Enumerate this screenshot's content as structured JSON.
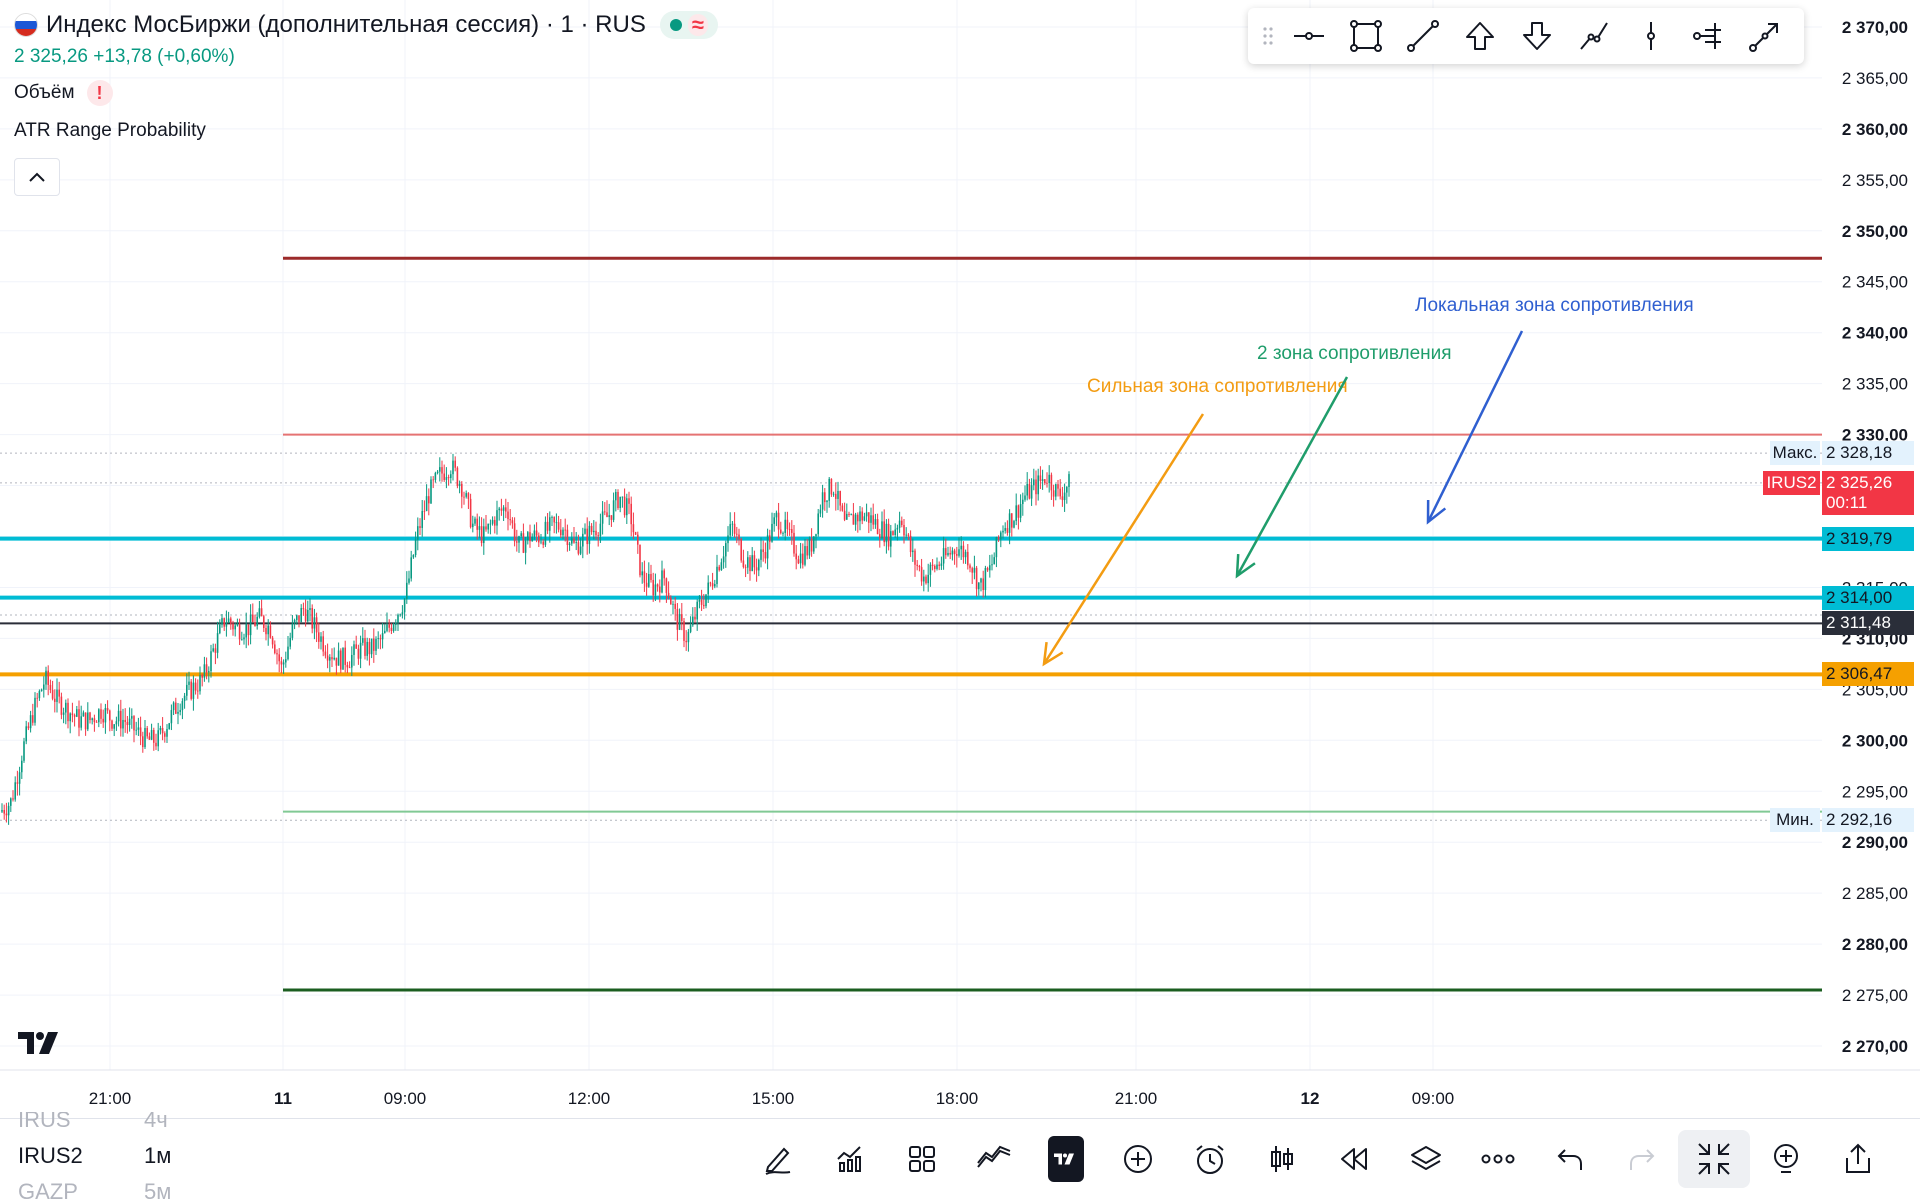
{
  "header": {
    "title": "Индекс МосБиржи (дополнительная сессия) · 1 · RUS",
    "price_line": "2 325,26 +13,78 (+0,60%)",
    "indicators": [
      "Объём",
      "ATR Range Probability"
    ]
  },
  "colors": {
    "up": "#089981",
    "down": "#f23645",
    "cyan": "#00bcd4",
    "orange": "#f5a000",
    "annot_orange": "#f39c12",
    "annot_green": "#1f9d6b",
    "annot_blue": "#2f5fd0"
  },
  "drawing_toolbar": [
    "grip-icon",
    "horizontal-ray-icon",
    "rectangle-icon",
    "trend-line-icon",
    "arrow-up-icon",
    "arrow-down-icon",
    "polyline-icon",
    "vertical-line-icon",
    "anchored-vwap-icon",
    "arrow-line-icon"
  ],
  "chart_data": {
    "type": "candlestick",
    "symbol": "IRUS2",
    "y_axis": {
      "range": [
        2267.5,
        2372.5
      ],
      "ticks": [
        "2 370,00",
        "2 365,00",
        "2 360,00",
        "2 355,00",
        "2 350,00",
        "2 345,00",
        "2 340,00",
        "2 335,00",
        "2 330,00",
        "2 325,00",
        "2 320,00",
        "2 315,00",
        "2 310,00",
        "2 305,00",
        "2 300,00",
        "2 295,00",
        "2 290,00",
        "2 285,00",
        "2 280,00",
        "2 275,00",
        "2 270,00"
      ],
      "tick_values": [
        2370,
        2365,
        2360,
        2355,
        2350,
        2345,
        2340,
        2335,
        2330,
        2325,
        2320,
        2315,
        2310,
        2305,
        2300,
        2295,
        2290,
        2285,
        2280,
        2275,
        2270
      ]
    },
    "x_axis": {
      "ticks": [
        {
          "label": "21:00",
          "bold": false
        },
        {
          "label": "11",
          "bold": true
        },
        {
          "label": "09:00",
          "bold": false
        },
        {
          "label": "12:00",
          "bold": false
        },
        {
          "label": "15:00",
          "bold": false
        },
        {
          "label": "18:00",
          "bold": false
        },
        {
          "label": "21:00",
          "bold": false
        },
        {
          "label": "12",
          "bold": true
        },
        {
          "label": "09:00",
          "bold": false
        }
      ]
    },
    "price_path": [
      [
        0,
        2293
      ],
      [
        1,
        2294
      ],
      [
        2,
        2299
      ],
      [
        3,
        2303
      ],
      [
        4,
        2306
      ],
      [
        5,
        2304
      ],
      [
        6,
        2303
      ],
      [
        7,
        2302
      ],
      [
        8,
        2302
      ],
      [
        9,
        2303
      ],
      [
        10,
        2302
      ],
      [
        11,
        2302
      ],
      [
        12,
        2301
      ],
      [
        13,
        2300
      ],
      [
        14,
        2300
      ],
      [
        15,
        2302
      ],
      [
        16,
        2304
      ],
      [
        17,
        2305
      ],
      [
        18,
        2306
      ],
      [
        19,
        2309
      ],
      [
        20,
        2312
      ],
      [
        21,
        2311
      ],
      [
        22,
        2311
      ],
      [
        23,
        2312
      ],
      [
        24,
        2311
      ],
      [
        25,
        2307
      ],
      [
        26,
        2311
      ],
      [
        27,
        2313
      ],
      [
        28,
        2311
      ],
      [
        29,
        2309
      ],
      [
        30,
        2308
      ],
      [
        31,
        2308
      ],
      [
        32,
        2309
      ],
      [
        33,
        2309
      ],
      [
        34,
        2310
      ],
      [
        35,
        2312
      ],
      [
        36,
        2314
      ],
      [
        37,
        2320
      ],
      [
        38,
        2324
      ],
      [
        39,
        2326
      ],
      [
        40,
        2327
      ],
      [
        41,
        2325
      ],
      [
        42,
        2321
      ],
      [
        43,
        2320
      ],
      [
        44,
        2322
      ],
      [
        45,
        2323
      ],
      [
        46,
        2319
      ],
      [
        47,
        2320
      ],
      [
        48,
        2320
      ],
      [
        49,
        2321
      ],
      [
        50,
        2321
      ],
      [
        51,
        2319
      ],
      [
        52,
        2320
      ],
      [
        53,
        2321
      ],
      [
        54,
        2322
      ],
      [
        55,
        2324
      ],
      [
        56,
        2322
      ],
      [
        57,
        2316
      ],
      [
        58,
        2315
      ],
      [
        59,
        2316
      ],
      [
        60,
        2312
      ],
      [
        61,
        2310
      ],
      [
        62,
        2313
      ],
      [
        63,
        2315
      ],
      [
        64,
        2318
      ],
      [
        65,
        2321
      ],
      [
        66,
        2318
      ],
      [
        67,
        2317
      ],
      [
        68,
        2319
      ],
      [
        69,
        2322
      ],
      [
        70,
        2320
      ],
      [
        71,
        2318
      ],
      [
        72,
        2319
      ],
      [
        73,
        2324
      ],
      [
        74,
        2325
      ],
      [
        75,
        2321
      ],
      [
        76,
        2322
      ],
      [
        77,
        2322
      ],
      [
        78,
        2321
      ],
      [
        79,
        2320
      ],
      [
        80,
        2322
      ],
      [
        81,
        2318
      ],
      [
        82,
        2316
      ],
      [
        83,
        2317
      ],
      [
        84,
        2318
      ],
      [
        85,
        2319
      ],
      [
        86,
        2318
      ],
      [
        87,
        2315
      ],
      [
        88,
        2317
      ],
      [
        89,
        2321
      ],
      [
        90,
        2322
      ],
      [
        91,
        2324
      ],
      [
        92,
        2325
      ],
      [
        93,
        2326
      ],
      [
        94,
        2324
      ],
      [
        95,
        2325.26
      ]
    ],
    "horizontal_lines": [
      {
        "price": 2347.3,
        "color": "#9c2a2a",
        "width": 3,
        "from": "11"
      },
      {
        "price": 2330.0,
        "color": "#e57373",
        "width": 2,
        "from": "11"
      },
      {
        "price": 2319.79,
        "color": "#00bcd4",
        "width": 4,
        "from": "start"
      },
      {
        "price": 2314.0,
        "color": "#00bcd4",
        "width": 4,
        "from": "start"
      },
      {
        "price": 2311.48,
        "color": "#2a2e39",
        "width": 2,
        "from": "start"
      },
      {
        "price": 2306.47,
        "color": "#f5a000",
        "width": 4,
        "from": "start"
      },
      {
        "price": 2293.0,
        "color": "#81c995",
        "width": 2,
        "from": "11"
      },
      {
        "price": 2275.5,
        "color": "#1b5e20",
        "width": 3,
        "from": "11"
      }
    ],
    "dotted_lines": [
      2328.18,
      2325.26,
      2312.3,
      2292.16
    ],
    "price_labels": [
      {
        "value": "2 328,18",
        "side": "Макс.",
        "price": 2328.18,
        "bg": "#e3f2fd",
        "fg": "#131722"
      },
      {
        "value": "2 325,26",
        "sub": "00:11",
        "side": "IRUS2",
        "price": 2325.26,
        "bg": "#f23645",
        "fg": "#ffffff"
      },
      {
        "value": "2 319,79",
        "price": 2319.79,
        "bg": "#00bcd4",
        "fg": "#131722"
      },
      {
        "value": "2 314,00",
        "price": 2314.0,
        "bg": "#00bcd4",
        "fg": "#131722"
      },
      {
        "value": "2 311,48",
        "price": 2311.48,
        "bg": "#2a2e39",
        "fg": "#ffffff"
      },
      {
        "value": "2 306,47",
        "price": 2306.47,
        "bg": "#f5a000",
        "fg": "#131722"
      },
      {
        "value": "2 292,16",
        "side": "Мин.",
        "price": 2292.16,
        "bg": "#e3f2fd",
        "fg": "#131722"
      }
    ],
    "annotations": [
      {
        "text": "Сильная зона сопротивления",
        "color": "#f39c12"
      },
      {
        "text": "2 зона сопротивления",
        "color": "#1f9d6b"
      },
      {
        "text": "Локальная зона сопротивления",
        "color": "#2f5fd0"
      }
    ]
  },
  "symbol_list": {
    "rows": [
      {
        "name": "IRUS",
        "interval": "4ч",
        "dim": true
      },
      {
        "name": "IRUS2",
        "interval": "1м",
        "dim": false
      },
      {
        "name": "GAZP",
        "interval": "5м",
        "dim": true
      }
    ]
  },
  "bottom_toolbar": [
    "draw-pen-icon",
    "indicators-icon",
    "layouts-icon",
    "compare-icon",
    "tradingview-logo-icon",
    "add-icon",
    "alert-icon",
    "bar-style-icon",
    "replay-icon",
    "layers-icon",
    "more-icon",
    "undo-icon",
    "redo-icon",
    "fullscreen-exit-icon",
    "create-idea-icon",
    "share-icon"
  ]
}
